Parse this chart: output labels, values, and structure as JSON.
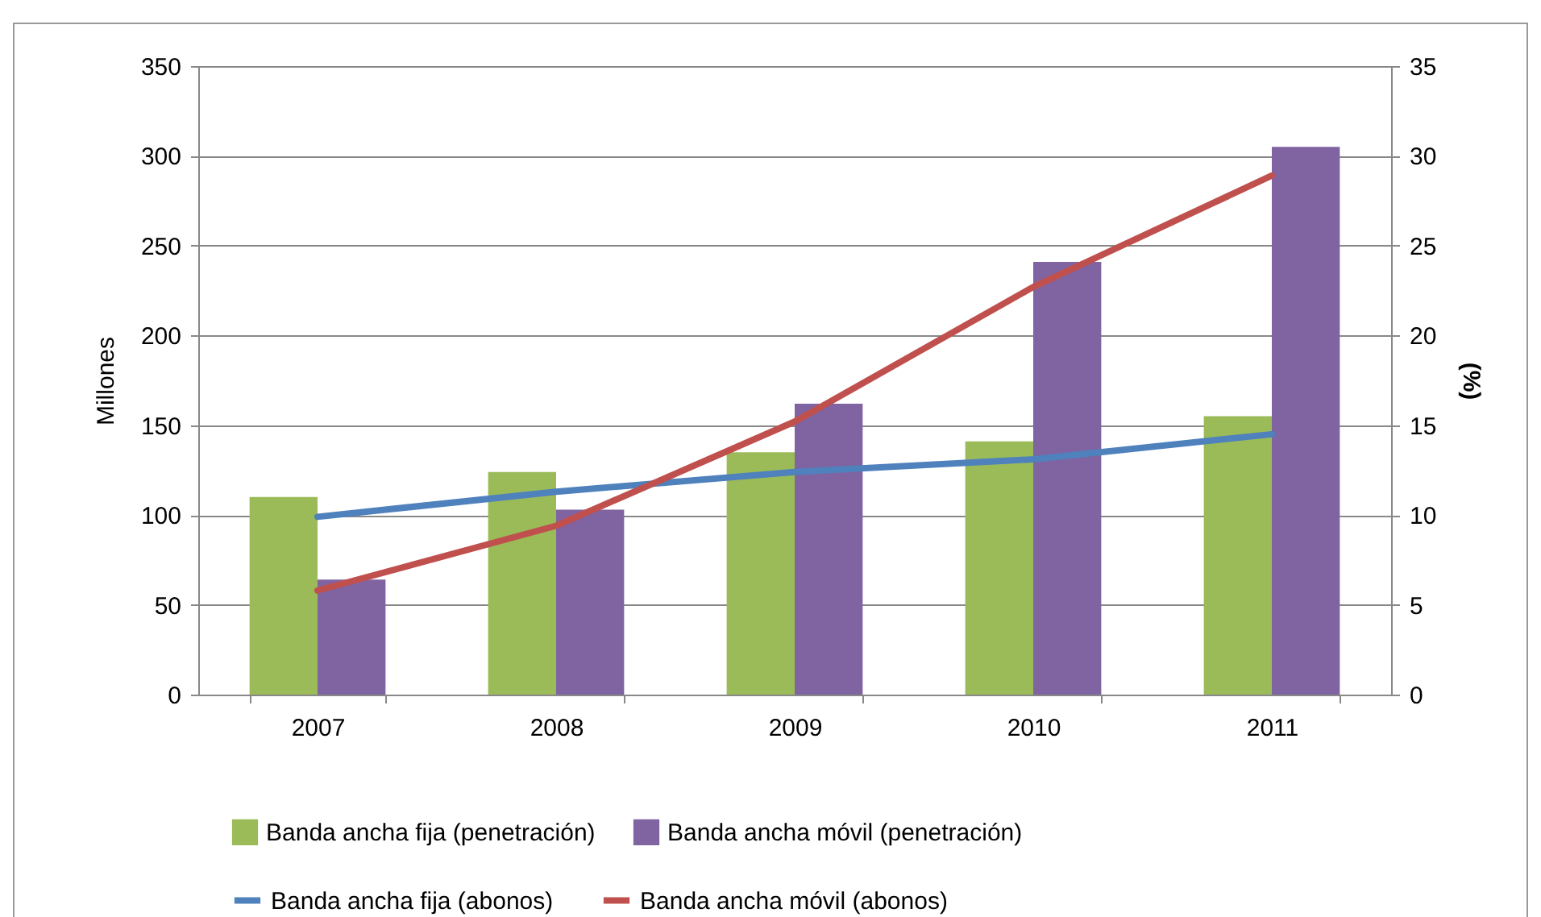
{
  "chart_data": {
    "type": "bar",
    "ylabel": "Millones",
    "y2label": "(%)",
    "categories": [
      "2007",
      "2008",
      "2009",
      "2010",
      "2011"
    ],
    "ylim": [
      0,
      350
    ],
    "yticks": [
      0,
      50,
      100,
      150,
      200,
      250,
      300,
      350
    ],
    "y2lim": [
      0,
      35
    ],
    "y2ticks": [
      0,
      5,
      10,
      15,
      20,
      25,
      30,
      35
    ],
    "grid": "y",
    "legend": "bottom",
    "series": [
      {
        "name": "Banda ancha fija (penetración)",
        "color": "#9bbb59",
        "values": [
          110,
          124,
          135,
          141,
          155
        ]
      },
      {
        "name": "Banda ancha móvil (penetración)",
        "color": "#8064a2",
        "values": [
          64,
          103,
          162,
          241,
          305
        ]
      },
      {
        "name": "Banda ancha fija (abonos)",
        "type": "line",
        "axis": "y2",
        "color": "#4f81bd",
        "values": [
          9.9,
          11.3,
          12.4,
          13.1,
          14.5
        ]
      },
      {
        "name": "Banda ancha móvil (abonos)",
        "type": "line",
        "axis": "y2",
        "color": "#c0504d",
        "values": [
          5.8,
          9.4,
          15.2,
          22.7,
          28.9
        ]
      }
    ]
  }
}
